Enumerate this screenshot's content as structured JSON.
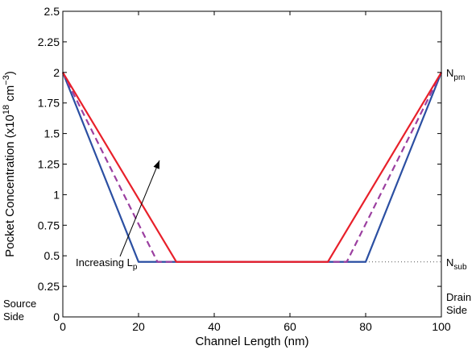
{
  "chart_data": {
    "type": "line",
    "xlabel": "Channel Length (nm)",
    "ylabel": {
      "prefix": "Pocket Concentration (x10",
      "exp1": "18",
      "mid": " cm",
      "exp2": "−3",
      "suffix": ")"
    },
    "xlim": [
      0,
      100
    ],
    "ylim": [
      0,
      2.5
    ],
    "xticks": [
      0,
      20,
      40,
      60,
      80,
      100
    ],
    "yticks": [
      0,
      0.25,
      0.5,
      0.75,
      1,
      1.25,
      1.5,
      1.75,
      2,
      2.25,
      2.5
    ],
    "xtick_labels": [
      "0",
      "20",
      "40",
      "60",
      "80",
      "100"
    ],
    "ytick_labels": [
      "0",
      "0.25",
      "0.5",
      "0.75",
      "1",
      "1.25",
      "1.5",
      "1.75",
      "2",
      "2.25",
      "2.5"
    ],
    "grid": false,
    "series": [
      {
        "color": "#2b4fa2",
        "dash": "solid",
        "x": [
          0,
          20,
          80,
          100
        ],
        "y": [
          2,
          0.45,
          0.45,
          2
        ]
      },
      {
        "color": "#9b3fa0",
        "dash": "dashed",
        "x": [
          0,
          25,
          75,
          100
        ],
        "y": [
          2,
          0.45,
          0.45,
          2
        ]
      },
      {
        "color": "#e8202a",
        "dash": "solid",
        "x": [
          0,
          30,
          70,
          100
        ],
        "y": [
          2,
          0.45,
          0.45,
          2
        ]
      }
    ],
    "reference_line": {
      "y": 0.45,
      "x": [
        80,
        100
      ],
      "style": "dotted"
    },
    "annotations": {
      "increasing": {
        "text": "Increasing L",
        "sub": "p"
      },
      "npm": {
        "text": "N",
        "sub": "pm"
      },
      "nsub": {
        "text": "N",
        "sub": "sub"
      },
      "source_side": [
        "Source",
        "Side"
      ],
      "drain_side": [
        "Drain",
        "Side"
      ]
    }
  }
}
